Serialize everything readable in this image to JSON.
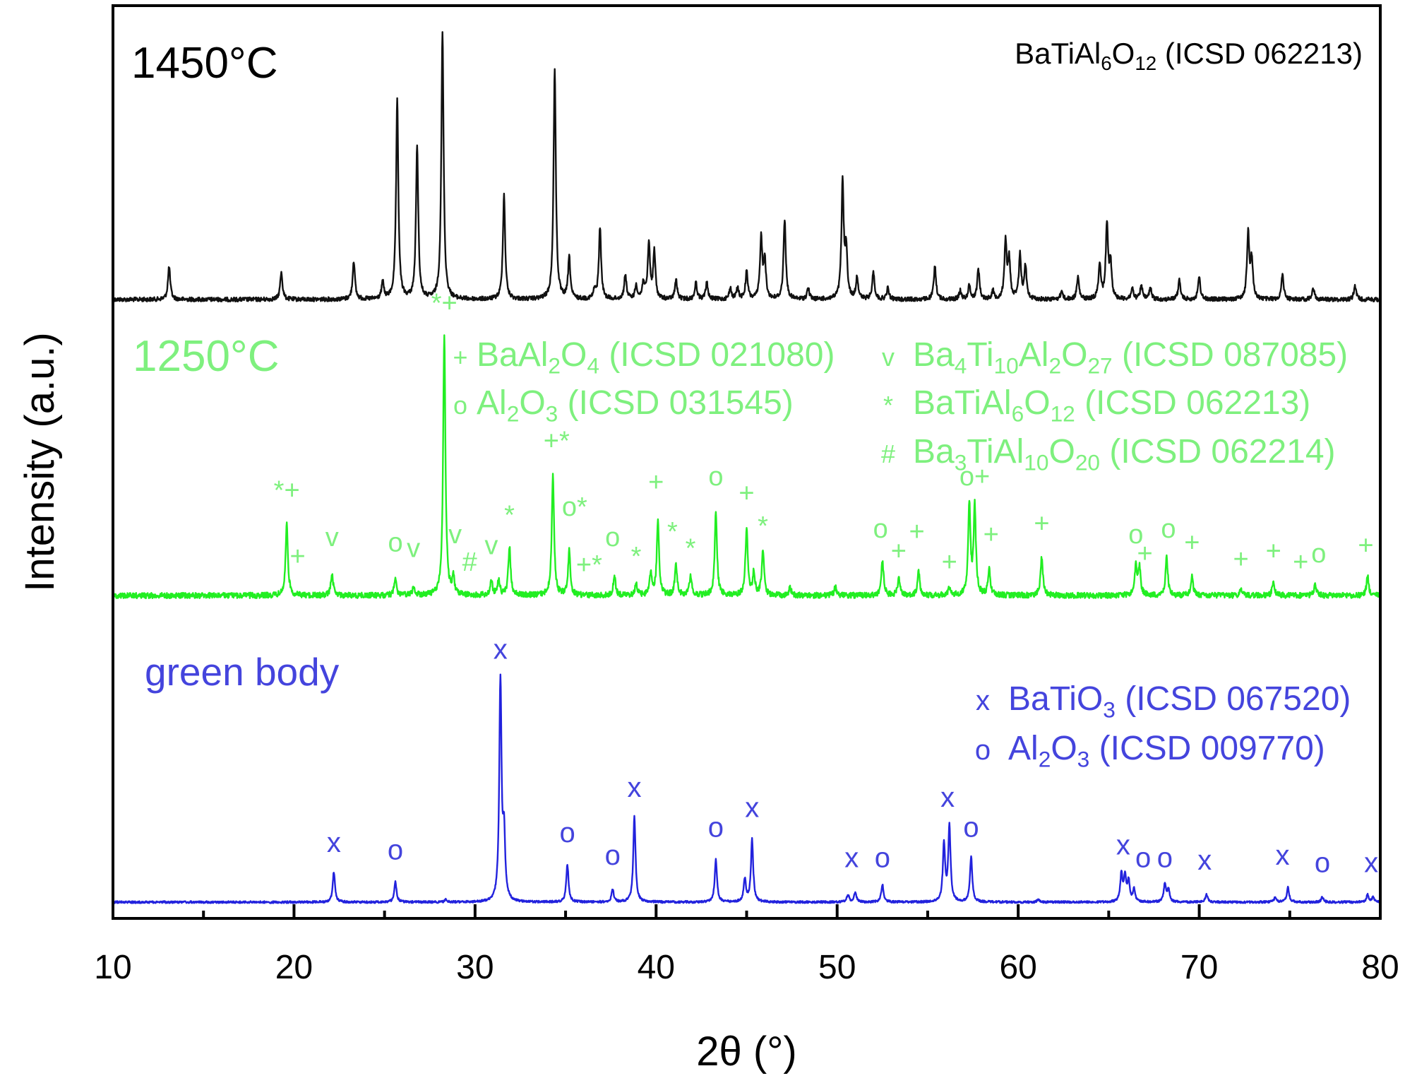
{
  "chart_data": {
    "type": "line",
    "xlabel": "2θ (°)",
    "ylabel": "Intensity (a.u.)",
    "xlim": [
      10,
      80
    ],
    "x_ticks": [
      "10",
      "20",
      "30",
      "40",
      "50",
      "60",
      "70",
      "80"
    ],
    "y_tick_labels": "none",
    "grid": false,
    "colors": {
      "black": "#111111",
      "green": "#22ee22",
      "green_text": "#7ef07e",
      "blue": "#2222dd",
      "blue_text": "#4444dd"
    },
    "series": [
      {
        "name": "1450°C",
        "color": "#111111",
        "baseline": 0,
        "peaks": [
          [
            13.1,
            0.12
          ],
          [
            19.3,
            0.1
          ],
          [
            23.3,
            0.14
          ],
          [
            24.9,
            0.06
          ],
          [
            25.7,
            0.72
          ],
          [
            26.8,
            0.56
          ],
          [
            28.2,
            0.97
          ],
          [
            31.6,
            0.38
          ],
          [
            34.4,
            0.84
          ],
          [
            35.2,
            0.15
          ],
          [
            36.6,
            0.03
          ],
          [
            36.9,
            0.26
          ],
          [
            38.3,
            0.09
          ],
          [
            38.9,
            0.05
          ],
          [
            39.3,
            0.06
          ],
          [
            39.6,
            0.2
          ],
          [
            39.9,
            0.17
          ],
          [
            41.1,
            0.07
          ],
          [
            42.2,
            0.06
          ],
          [
            42.8,
            0.06
          ],
          [
            44.1,
            0.04
          ],
          [
            44.5,
            0.04
          ],
          [
            45.0,
            0.1
          ],
          [
            45.8,
            0.22
          ],
          [
            46.0,
            0.14
          ],
          [
            47.1,
            0.29
          ],
          [
            48.4,
            0.04
          ],
          [
            50.3,
            0.42
          ],
          [
            50.5,
            0.17
          ],
          [
            51.1,
            0.08
          ],
          [
            52.0,
            0.1
          ],
          [
            52.8,
            0.04
          ],
          [
            55.4,
            0.12
          ],
          [
            56.8,
            0.03
          ],
          [
            57.3,
            0.05
          ],
          [
            57.8,
            0.11
          ],
          [
            58.6,
            0.03
          ],
          [
            59.3,
            0.21
          ],
          [
            59.5,
            0.14
          ],
          [
            60.1,
            0.16
          ],
          [
            60.4,
            0.12
          ],
          [
            62.4,
            0.03
          ],
          [
            63.3,
            0.08
          ],
          [
            64.5,
            0.13
          ],
          [
            64.9,
            0.27
          ],
          [
            65.1,
            0.13
          ],
          [
            66.3,
            0.04
          ],
          [
            66.8,
            0.05
          ],
          [
            67.3,
            0.04
          ],
          [
            68.9,
            0.07
          ],
          [
            70.0,
            0.08
          ],
          [
            72.7,
            0.24
          ],
          [
            72.9,
            0.14
          ],
          [
            74.6,
            0.09
          ],
          [
            76.3,
            0.04
          ],
          [
            78.6,
            0.05
          ]
        ]
      },
      {
        "name": "1250°C",
        "color": "#22ee22",
        "baseline": 0,
        "peaks": [
          [
            19.6,
            0.26
          ],
          [
            22.1,
            0.08
          ],
          [
            25.6,
            0.06
          ],
          [
            26.6,
            0.03
          ],
          [
            28.3,
            0.95
          ],
          [
            28.8,
            0.06
          ],
          [
            30.9,
            0.05
          ],
          [
            31.3,
            0.06
          ],
          [
            31.9,
            0.18
          ],
          [
            34.3,
            0.44
          ],
          [
            35.2,
            0.16
          ],
          [
            37.7,
            0.07
          ],
          [
            38.9,
            0.04
          ],
          [
            39.7,
            0.08
          ],
          [
            40.1,
            0.27
          ],
          [
            41.1,
            0.11
          ],
          [
            41.9,
            0.07
          ],
          [
            43.3,
            0.3
          ],
          [
            45.0,
            0.25
          ],
          [
            45.4,
            0.08
          ],
          [
            45.9,
            0.16
          ],
          [
            47.4,
            0.03
          ],
          [
            49.9,
            0.03
          ],
          [
            52.5,
            0.13
          ],
          [
            53.4,
            0.06
          ],
          [
            54.5,
            0.09
          ],
          [
            56.2,
            0.03
          ],
          [
            57.3,
            0.33
          ],
          [
            57.6,
            0.32
          ],
          [
            58.4,
            0.09
          ],
          [
            61.3,
            0.14
          ],
          [
            66.5,
            0.11
          ],
          [
            66.7,
            0.1
          ],
          [
            68.2,
            0.14
          ],
          [
            69.6,
            0.07
          ],
          [
            72.3,
            0.02
          ],
          [
            74.1,
            0.05
          ],
          [
            76.4,
            0.04
          ],
          [
            79.3,
            0.07
          ]
        ]
      },
      {
        "name": "green body",
        "color": "#2222dd",
        "baseline": 0,
        "peaks": [
          [
            22.2,
            0.12
          ],
          [
            25.6,
            0.08
          ],
          [
            28.4,
            0.01
          ],
          [
            31.4,
            0.88
          ],
          [
            31.6,
            0.25
          ],
          [
            35.1,
            0.15
          ],
          [
            37.6,
            0.05
          ],
          [
            38.8,
            0.34
          ],
          [
            43.3,
            0.17
          ],
          [
            44.9,
            0.09
          ],
          [
            45.3,
            0.25
          ],
          [
            50.6,
            0.03
          ],
          [
            51.0,
            0.04
          ],
          [
            52.5,
            0.07
          ],
          [
            55.9,
            0.23
          ],
          [
            56.2,
            0.3
          ],
          [
            57.4,
            0.18
          ],
          [
            61.1,
            0.01
          ],
          [
            65.7,
            0.11
          ],
          [
            65.9,
            0.1
          ],
          [
            66.1,
            0.08
          ],
          [
            66.4,
            0.05
          ],
          [
            68.1,
            0.07
          ],
          [
            68.3,
            0.05
          ],
          [
            70.4,
            0.03
          ],
          [
            74.2,
            0.02
          ],
          [
            74.9,
            0.06
          ],
          [
            76.8,
            0.02
          ],
          [
            79.3,
            0.03
          ],
          [
            79.6,
            0.02
          ]
        ]
      }
    ],
    "annotations": {
      "temp_1450": "1450°C",
      "ref_1450": {
        "pre": "BaTiAl",
        "s1": "6",
        "mid": "O",
        "s2": "12",
        "post": " (ICSD 062213)"
      },
      "temp_1250": "1250°C",
      "label_green_body": "green body",
      "legend_1250": [
        {
          "symbol": "+",
          "pre": "BaAl",
          "s1": "2",
          "mid": "O",
          "s2": "4",
          "post": " (ICSD 021080)"
        },
        {
          "symbol": "o",
          "pre": "Al",
          "s1": "2",
          "mid": "O",
          "s2": "3",
          "post": " (ICSD 031545)"
        },
        {
          "symbol": "v",
          "pre": "Ba",
          "s1": "4",
          "mid": "Ti",
          "s2": "10",
          "mid2": "Al",
          "s3": "2",
          "mid3": "O",
          "s4": "27",
          "post": " (ICSD 087085)"
        },
        {
          "symbol": "*",
          "pre": "BaTiAl",
          "s1": "6",
          "mid": "O",
          "s2": "12",
          "post": " (ICSD 062213)"
        },
        {
          "symbol": "#",
          "pre": "Ba",
          "s1": "3",
          "mid": "TiAl",
          "s2": "10",
          "mid2": "O",
          "s3": "20",
          "post": " (ICSD 062214)"
        }
      ],
      "legend_green": [
        {
          "symbol": "x",
          "pre": "BaTiO",
          "s1": "3",
          "post": " (ICSD 067520)"
        },
        {
          "symbol": "o",
          "pre": "Al",
          "s1": "2",
          "mid": "O",
          "s2": "3",
          "post": " (ICSD 009770)"
        }
      ],
      "peak_marks_1250": [
        {
          "x": 19.6,
          "t": "*+",
          "h": 0.35
        },
        {
          "x": 20.2,
          "t": "+",
          "h": 0.11
        },
        {
          "x": 22.1,
          "t": "v",
          "h": 0.18
        },
        {
          "x": 25.6,
          "t": "o",
          "h": 0.16
        },
        {
          "x": 26.6,
          "t": "v",
          "h": 0.14
        },
        {
          "x": 28.3,
          "t": "*+",
          "h": 1.03
        },
        {
          "x": 28.9,
          "t": "v",
          "h": 0.19
        },
        {
          "x": 29.7,
          "t": "#",
          "h": 0.09
        },
        {
          "x": 30.9,
          "t": "v",
          "h": 0.15
        },
        {
          "x": 31.9,
          "t": "*",
          "h": 0.26
        },
        {
          "x": 34.5,
          "t": "+*",
          "h": 0.53
        },
        {
          "x": 35.5,
          "t": "o*",
          "h": 0.29
        },
        {
          "x": 36.3,
          "t": "+*",
          "h": 0.08
        },
        {
          "x": 37.6,
          "t": "o",
          "h": 0.18
        },
        {
          "x": 38.9,
          "t": "*",
          "h": 0.11
        },
        {
          "x": 40.0,
          "t": "+",
          "h": 0.38
        },
        {
          "x": 40.9,
          "t": "*",
          "h": 0.2
        },
        {
          "x": 41.9,
          "t": "*",
          "h": 0.14
        },
        {
          "x": 43.3,
          "t": "o",
          "h": 0.4
        },
        {
          "x": 45.0,
          "t": "+",
          "h": 0.34
        },
        {
          "x": 45.9,
          "t": "*",
          "h": 0.22
        },
        {
          "x": 52.4,
          "t": "o",
          "h": 0.21
        },
        {
          "x": 53.4,
          "t": "+",
          "h": 0.13
        },
        {
          "x": 54.4,
          "t": "+",
          "h": 0.2
        },
        {
          "x": 56.2,
          "t": "+",
          "h": 0.09
        },
        {
          "x": 57.6,
          "t": "o+",
          "h": 0.4
        },
        {
          "x": 58.5,
          "t": "+",
          "h": 0.19
        },
        {
          "x": 61.3,
          "t": "+",
          "h": 0.23
        },
        {
          "x": 66.5,
          "t": "o",
          "h": 0.19
        },
        {
          "x": 67.0,
          "t": "+",
          "h": 0.12
        },
        {
          "x": 68.3,
          "t": "o",
          "h": 0.21
        },
        {
          "x": 69.6,
          "t": "+",
          "h": 0.16
        },
        {
          "x": 72.3,
          "t": "+",
          "h": 0.1
        },
        {
          "x": 74.1,
          "t": "+",
          "h": 0.13
        },
        {
          "x": 75.6,
          "t": "+",
          "h": 0.09
        },
        {
          "x": 76.6,
          "t": "o",
          "h": 0.12
        },
        {
          "x": 79.2,
          "t": "+",
          "h": 0.15
        }
      ],
      "peak_marks_green": [
        {
          "x": 22.2,
          "t": "x",
          "h": 0.2
        },
        {
          "x": 25.6,
          "t": "o",
          "h": 0.17
        },
        {
          "x": 31.4,
          "t": "x",
          "h": 0.97
        },
        {
          "x": 35.1,
          "t": "o",
          "h": 0.24
        },
        {
          "x": 37.6,
          "t": "o",
          "h": 0.15
        },
        {
          "x": 38.8,
          "t": "x",
          "h": 0.42
        },
        {
          "x": 43.3,
          "t": "o",
          "h": 0.26
        },
        {
          "x": 45.3,
          "t": "x",
          "h": 0.34
        },
        {
          "x": 50.8,
          "t": "x",
          "h": 0.14
        },
        {
          "x": 52.5,
          "t": "o",
          "h": 0.14
        },
        {
          "x": 56.1,
          "t": "x",
          "h": 0.38
        },
        {
          "x": 57.4,
          "t": "o",
          "h": 0.26
        },
        {
          "x": 65.8,
          "t": "x",
          "h": 0.19
        },
        {
          "x": 66.9,
          "t": "o",
          "h": 0.14
        },
        {
          "x": 68.1,
          "t": "o",
          "h": 0.14
        },
        {
          "x": 70.3,
          "t": "x",
          "h": 0.13
        },
        {
          "x": 74.6,
          "t": "x",
          "h": 0.15
        },
        {
          "x": 76.8,
          "t": "o",
          "h": 0.12
        },
        {
          "x": 79.5,
          "t": "x",
          "h": 0.12
        }
      ]
    }
  }
}
